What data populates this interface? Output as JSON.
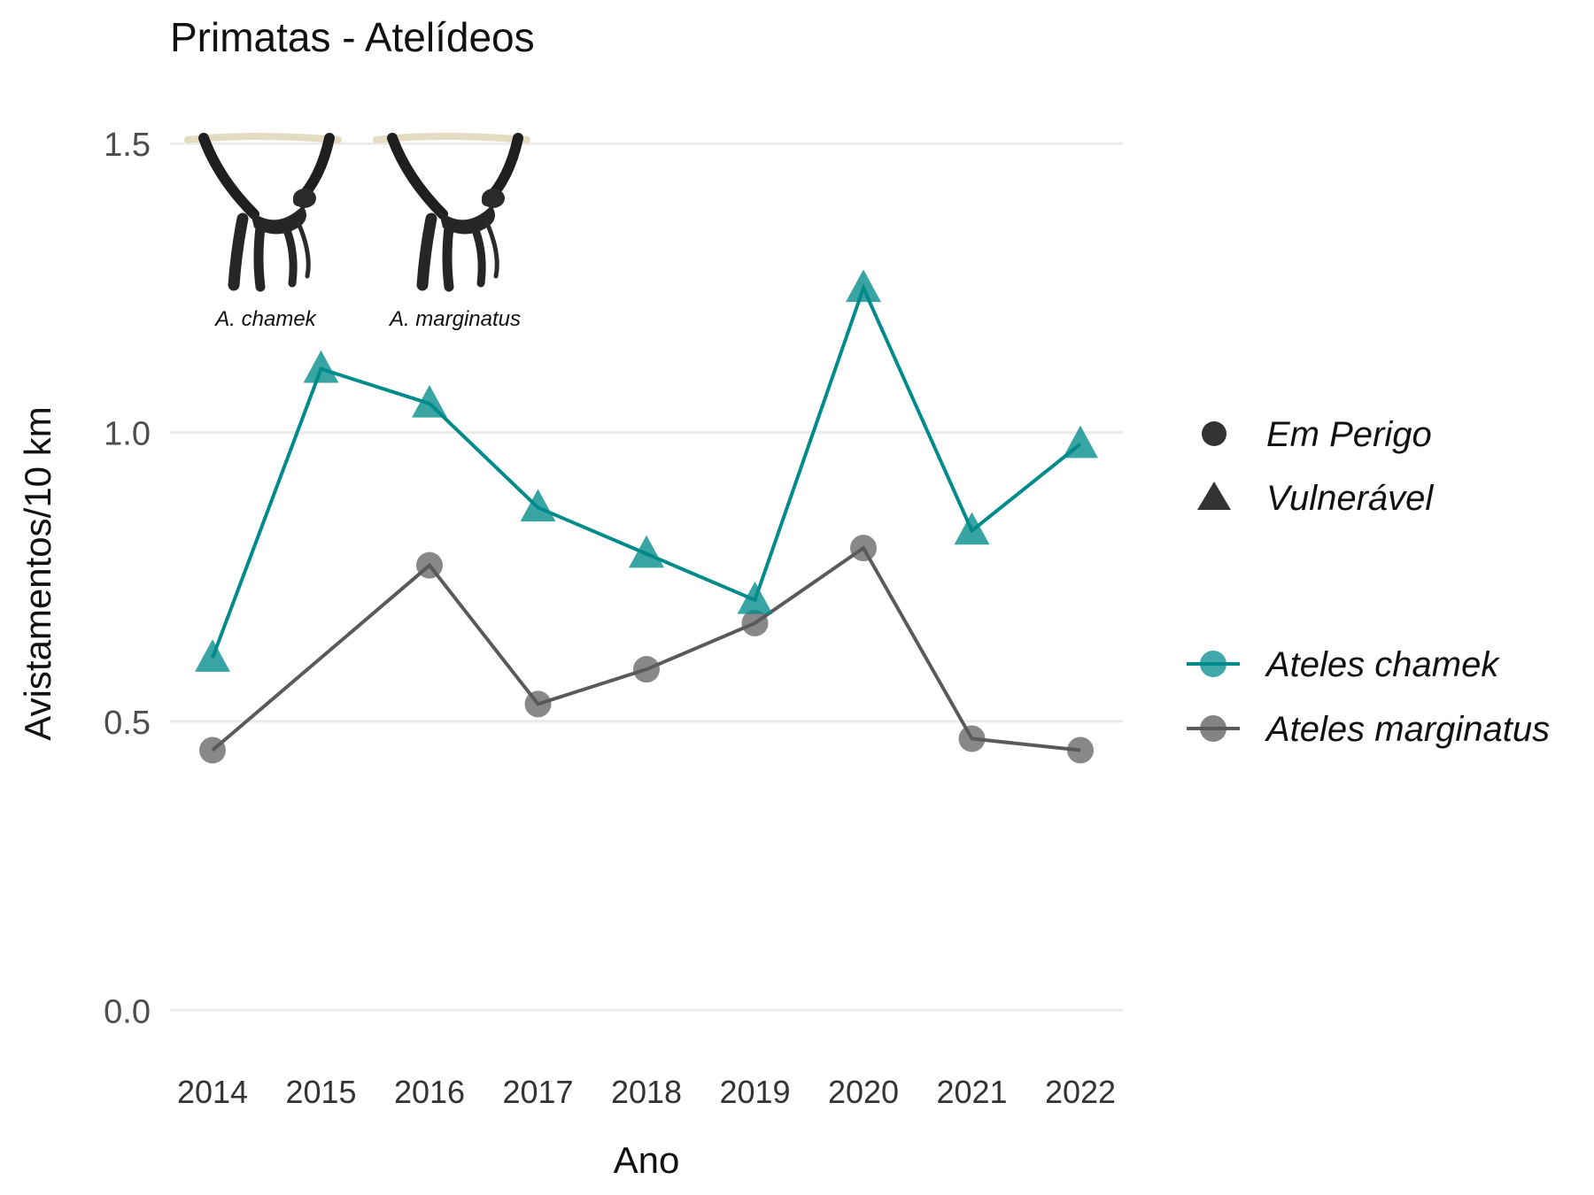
{
  "chart_data": {
    "type": "line",
    "title": "Primatas - Atelídeos",
    "xlabel": "Ano",
    "ylabel": "Avistamentos/10 km",
    "x": [
      2014,
      2015,
      2016,
      2017,
      2018,
      2019,
      2020,
      2021,
      2022
    ],
    "x_tick_labels": [
      "2014",
      "2015",
      "2016",
      "2017",
      "2018",
      "2019",
      "2020",
      "2021",
      "2022"
    ],
    "ylim": [
      -0.09,
      1.58
    ],
    "y_ticks": [
      0.0,
      0.5,
      1.0,
      1.5
    ],
    "y_tick_labels": [
      "0.0",
      "0.5",
      "1.0",
      "1.5"
    ],
    "grid": true,
    "legend_position": "right",
    "series": [
      {
        "name": "Ateles chamek",
        "color": "#008b8b",
        "shape": "triangle",
        "values": [
          0.61,
          1.11,
          1.05,
          0.87,
          0.79,
          0.71,
          1.25,
          0.83,
          0.98
        ]
      },
      {
        "name": "Ateles marginatus",
        "color": "#5a5a5a",
        "shape": "circle",
        "values": [
          0.45,
          null,
          0.77,
          0.53,
          0.59,
          0.67,
          0.8,
          0.47,
          0.45
        ]
      }
    ],
    "shape_legend": [
      {
        "label": "Em Perigo",
        "shape": "circle"
      },
      {
        "label": "Vulnerável",
        "shape": "triangle"
      }
    ],
    "annotations": [
      {
        "label": "A. chamek",
        "icon": "spider-monkey-icon"
      },
      {
        "label": "A. marginatus",
        "icon": "spider-monkey-icon"
      }
    ]
  }
}
